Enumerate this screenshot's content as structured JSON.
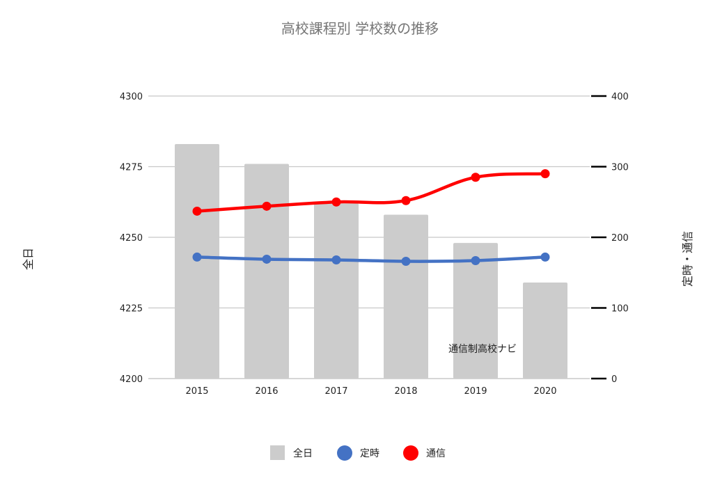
{
  "colors": {
    "background": "#ffffff",
    "bar": "#cccccc",
    "line_teiji": "#4472c4",
    "line_tsushin": "#ff0000",
    "grid": "#c8c8c8",
    "title_text": "#757575",
    "text": "#222222",
    "right_ticks": "#000000"
  },
  "watermark": "通信制高校ナビ",
  "chart_data": {
    "type": "bar",
    "title": "高校課程別 学校数の推移",
    "xlabel": "",
    "ylabel": "全日",
    "y2label": "定時・通信",
    "categories": [
      "2015",
      "2016",
      "2017",
      "2018",
      "2019",
      "2020"
    ],
    "ylim": [
      4200,
      4300
    ],
    "yticks": [
      "4300",
      "4275",
      "4250",
      "4225",
      "4200"
    ],
    "y2lim": [
      0,
      400
    ],
    "y2ticks": [
      "400",
      "300",
      "200",
      "100",
      "0"
    ],
    "grid": true,
    "legend_position": "bottom",
    "series": [
      {
        "name": "全日",
        "type": "bar",
        "axis": "left",
        "color": "#cccccc",
        "values": [
          4283,
          4276,
          4262,
          4258,
          4248,
          4234
        ]
      },
      {
        "name": "定時",
        "type": "line",
        "axis": "right",
        "color": "#4472c4",
        "values": [
          172,
          169,
          168,
          166,
          167,
          172
        ]
      },
      {
        "name": "通信",
        "type": "line",
        "axis": "right",
        "color": "#ff0000",
        "values": [
          237,
          244,
          250,
          252,
          285,
          290
        ]
      }
    ]
  }
}
